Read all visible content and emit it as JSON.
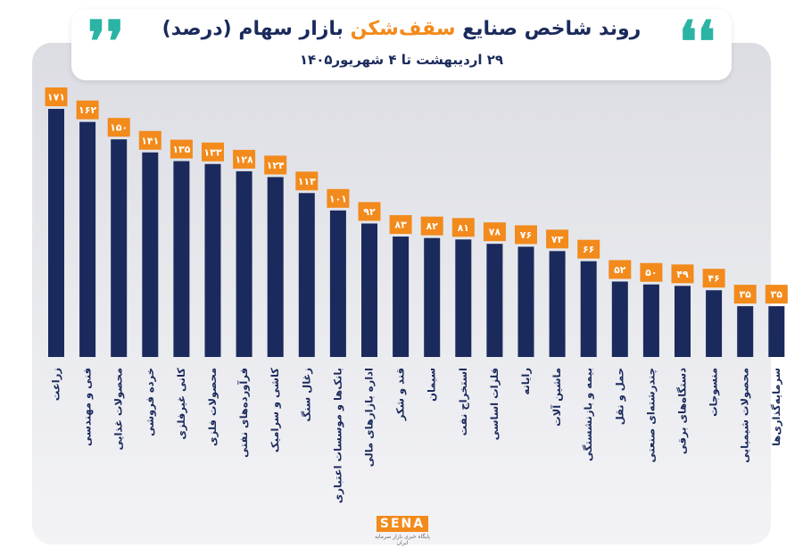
{
  "header": {
    "title_start": "روند شاخص صنایع ",
    "title_highlight": "سقف‌شکن",
    "title_end": " بازار سهام (درصد)",
    "subtitle": "۲۹ اردیبهشت تا ۴ شهریور۱۴۰۵",
    "quote_open": "❛❛",
    "quote_close": "❜❜"
  },
  "logo": {
    "name": "SENA",
    "tagline": "پایگاه خبری بازار سرمایه ایران"
  },
  "colors": {
    "bar": "#1b2a5c",
    "label_bg": "#f28a1c",
    "label_text": "#ffffff",
    "title_accent": "#f28a1c",
    "quote": "#2bb3a3"
  },
  "chart_data": {
    "type": "bar",
    "categories": [
      "زراعت",
      "فنی و مهندسی",
      "محصولات غذایی",
      "خرده فروشی",
      "کانی غیرفلزی",
      "محصولات فلزی",
      "فرآورده‌های نفتی",
      "کاشی و سرامیک",
      "زغال سنگ",
      "بانک‌ها و موسسات اعتباری",
      "اداره بازارهای مالی",
      "قند و شکر",
      "سیمان",
      "استخراج نفت",
      "فلزات اساسی",
      "رایانه",
      "ماشین آلات",
      "بیمه و بازنشستگی",
      "حمل و نقل",
      "چندرشته‌ای صنعتی",
      "دستگاه‌های برقی",
      "منسوجات",
      "محصولات شیمیایی",
      "سرمایه‌گذاری‌ها"
    ],
    "values": [
      171,
      162,
      150,
      141,
      135,
      133,
      128,
      124,
      113,
      101,
      92,
      83,
      82,
      81,
      78,
      76,
      73,
      66,
      52,
      50,
      49,
      46,
      35,
      35
    ],
    "value_labels": [
      "۱۷۱",
      "۱۶۲",
      "۱۵۰",
      "۱۴۱",
      "۱۳۵",
      "۱۳۳",
      "۱۲۸",
      "۱۲۴",
      "۱۱۳",
      "۱۰۱",
      "۹۲",
      "۸۳",
      "۸۲",
      "۸۱",
      "۷۸",
      "۷۶",
      "۷۳",
      "۶۶",
      "۵۲",
      "۵۰",
      "۴۹",
      "۴۶",
      "۳۵",
      "۳۵"
    ],
    "ylim": [
      0,
      171
    ],
    "grid": false,
    "legend": "none"
  }
}
